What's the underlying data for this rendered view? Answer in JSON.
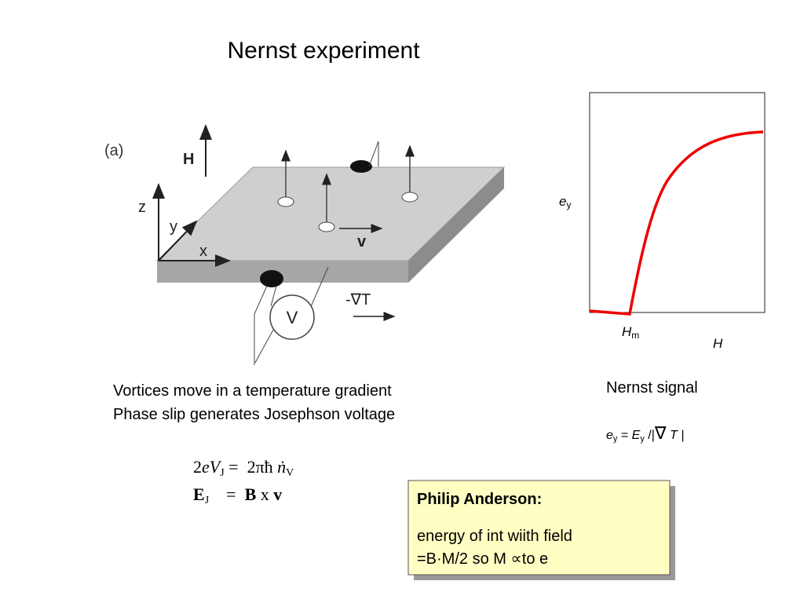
{
  "title": "Nernst experiment",
  "figure": {
    "panel_label": "(a)",
    "labels": {
      "field": "H",
      "z": "z",
      "y": "y",
      "x": "x",
      "velocity": "v",
      "gradient": "-∇T",
      "voltmeter": "V"
    }
  },
  "plot": {
    "y_label": {
      "base": "e",
      "sub": "y"
    },
    "marker": {
      "base": "H",
      "sub": "m"
    },
    "x_label": "H"
  },
  "nernst": {
    "title": "Nernst signal",
    "formula": [
      "e",
      "y",
      " = ",
      "E",
      "y",
      " /|",
      "∇",
      " T |"
    ]
  },
  "caption": [
    "Vortices move in a temperature gradient",
    "Phase slip generates Josephson voltage"
  ],
  "equations": [
    [
      "2",
      "eV",
      "J",
      " =  2πħ ",
      "ṅ",
      "V"
    ],
    [
      "E",
      "J",
      "    =  ",
      "B",
      " x ",
      "v"
    ]
  ],
  "note": {
    "title": "Philip Anderson:",
    "lines": [
      "energy of int wiith field",
      "=B·M/2 so M ∝to e"
    ]
  }
}
